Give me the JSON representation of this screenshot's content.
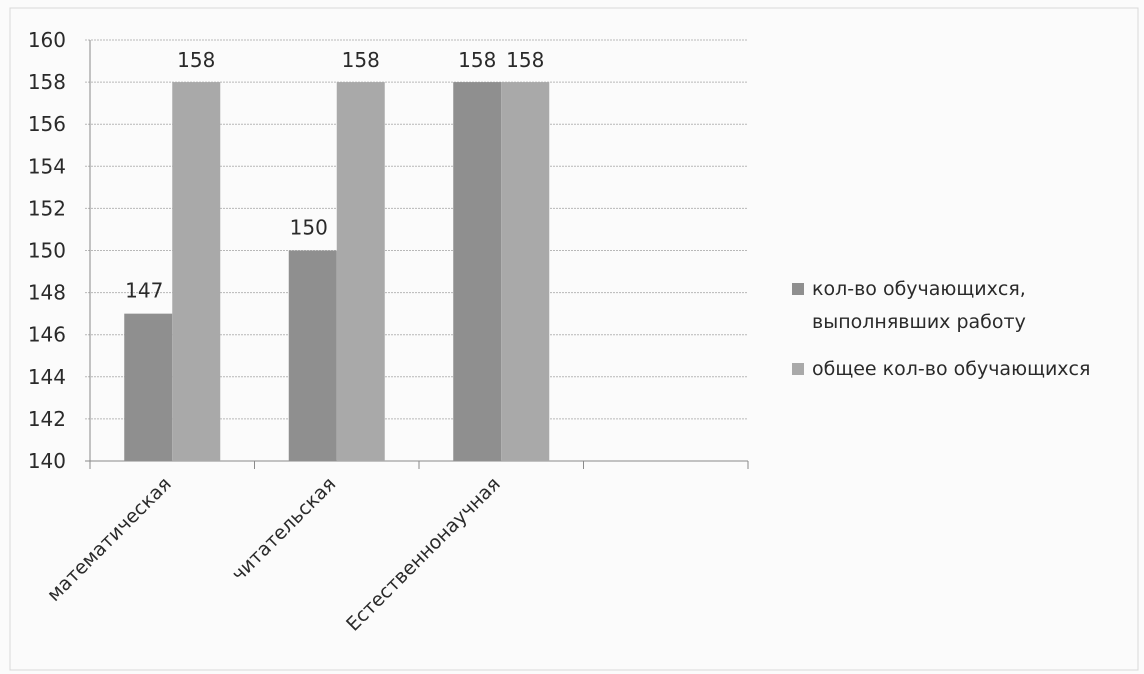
{
  "chart_data": {
    "type": "bar",
    "categories": [
      "математическая",
      "читательская",
      "Естественнонаучная"
    ],
    "series": [
      {
        "name": "кол-во обучающихся, выполнявших работу",
        "values": [
          147,
          150,
          158
        ],
        "color": "#8f8f8f"
      },
      {
        "name": "общее кол-во обучающихся",
        "values": [
          158,
          158,
          158
        ],
        "color": "#a9a9a9"
      }
    ],
    "data_labels": [
      [
        "147",
        "150",
        "158"
      ],
      [
        "158",
        "158",
        "158"
      ]
    ],
    "legend_lines": [
      [
        "кол-во обучающихся,",
        "выполнявших работу"
      ],
      [
        "общее кол-во обучающихся"
      ]
    ],
    "title": "",
    "xlabel": "",
    "ylabel": "",
    "ylim": [
      140,
      160
    ],
    "yticks": [
      160,
      158,
      156,
      154,
      152,
      150,
      148,
      146,
      144,
      142,
      140
    ],
    "grid": true,
    "legend_position": "right"
  }
}
